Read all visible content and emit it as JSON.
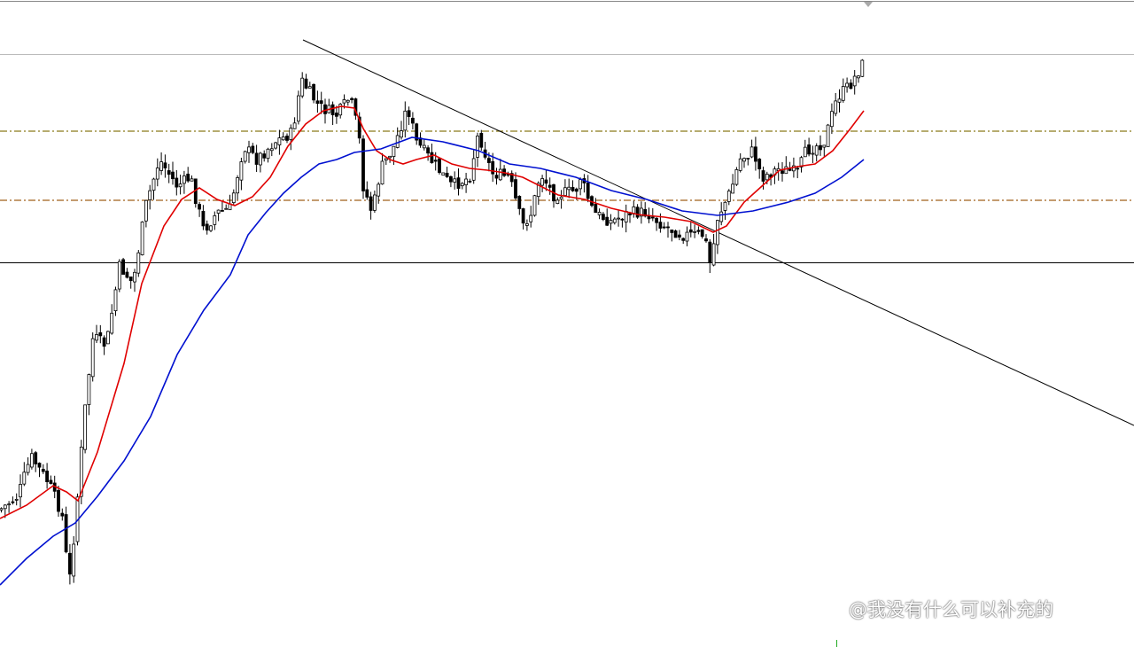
{
  "watermark": "@我没有什么可以补充的"
}
